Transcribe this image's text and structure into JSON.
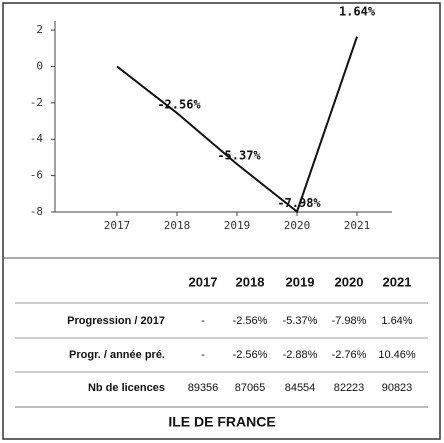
{
  "chart_data": {
    "type": "line",
    "categories": [
      "2017",
      "2018",
      "2019",
      "2020",
      "2021"
    ],
    "values": [
      0,
      -2.56,
      -5.37,
      -7.98,
      1.64
    ],
    "value_labels": [
      null,
      "-2.56%",
      "-5.37%",
      "-7.98%",
      "1.64%"
    ],
    "color": "#111111",
    "ylim": [
      -8,
      2.5
    ],
    "yticks": [
      2,
      0,
      -2,
      -4,
      -6,
      -8
    ],
    "grid": false
  },
  "table": {
    "rows": [
      [
        "Progression / 2017",
        "-",
        "-2.56%",
        "-5.37%",
        "-7.98%",
        "1.64%"
      ],
      [
        "Progr. / année pré.",
        "-",
        "-2.56%",
        "-2.88%",
        "-2.76%",
        "10.46%"
      ],
      [
        "Nb de licences",
        89356,
        87065,
        84554,
        82223,
        90823
      ]
    ]
  },
  "footer": "ILE DE FRANCE"
}
